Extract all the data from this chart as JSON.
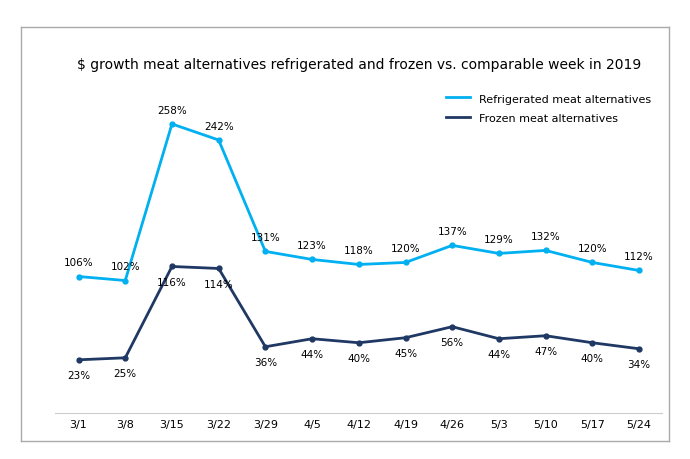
{
  "title": "$ growth meat alternatives refrigerated and frozen vs. comparable week in 2019",
  "x_labels": [
    "3/1",
    "3/8",
    "3/15",
    "3/22",
    "3/29",
    "4/5",
    "4/12",
    "4/19",
    "4/26",
    "5/3",
    "5/10",
    "5/17",
    "5/24"
  ],
  "refrigerated": [
    106,
    102,
    258,
    242,
    131,
    123,
    118,
    120,
    137,
    129,
    132,
    120,
    112
  ],
  "frozen": [
    23,
    25,
    116,
    114,
    36,
    44,
    40,
    45,
    56,
    44,
    47,
    40,
    34
  ],
  "refrigerated_color": "#00B0F0",
  "frozen_color": "#1F3864",
  "legend_refrigerated": "Refrigerated meat alternatives",
  "legend_frozen": "Frozen meat alternatives",
  "background_color": "#FFFFFF",
  "plot_bg_color": "#FFFFFF",
  "box_border_color": "#AAAAAA",
  "ylim": [
    -30,
    300
  ],
  "title_fontsize": 10,
  "label_fontsize": 7.5,
  "tick_fontsize": 8,
  "legend_fontsize": 8
}
